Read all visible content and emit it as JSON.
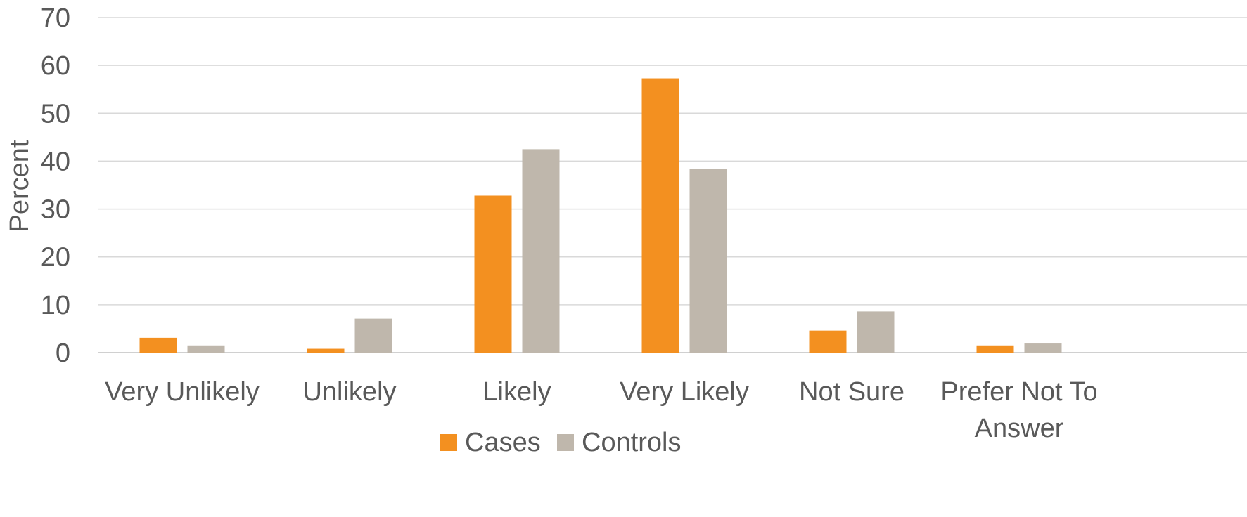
{
  "chart_data": {
    "type": "bar",
    "title": "",
    "xlabel": "",
    "ylabel": "Percent",
    "ylim": [
      0,
      70
    ],
    "yticks": [
      0,
      10,
      20,
      30,
      40,
      50,
      60,
      70
    ],
    "grid": true,
    "legend_position": "bottom",
    "categories": [
      [
        "Very Unlikely"
      ],
      [
        "Unlikely"
      ],
      [
        "Likely"
      ],
      [
        "Very Likely"
      ],
      [
        "Not Sure"
      ],
      [
        "Prefer Not To",
        "Answer"
      ]
    ],
    "series": [
      {
        "name": "Cases",
        "color": "#F39020",
        "values": [
          3.1,
          0.8,
          32.8,
          57.3,
          4.6,
          1.5
        ]
      },
      {
        "name": "Controls",
        "color": "#BFB7AC",
        "values": [
          1.5,
          7.1,
          42.5,
          38.4,
          8.6,
          1.9
        ]
      }
    ]
  }
}
